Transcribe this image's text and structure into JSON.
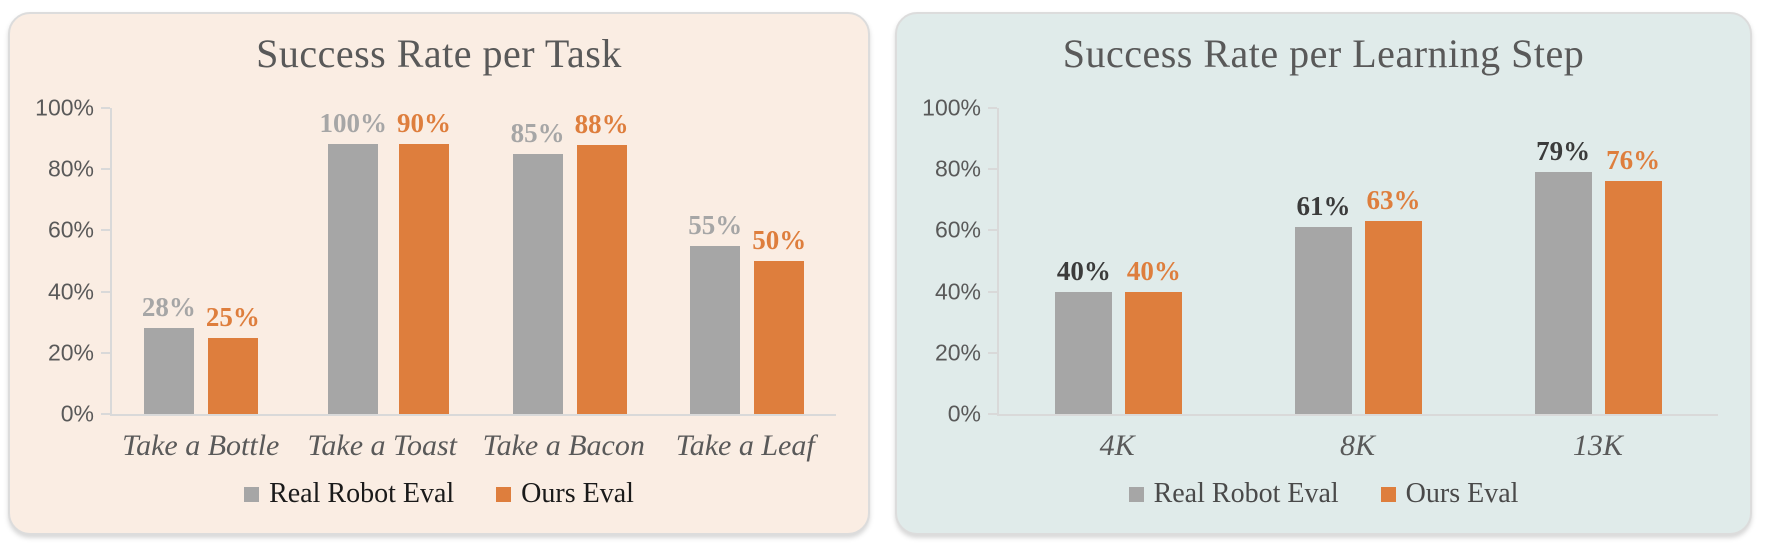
{
  "chart_data": [
    {
      "type": "bar",
      "title": "Success Rate per Task",
      "categories": [
        "Take a Bottle",
        "Take a Toast",
        "Take a Bacon",
        "Take a Leaf"
      ],
      "series": [
        {
          "name": "Real Robot Eval",
          "values": [
            28,
            100,
            85,
            55
          ],
          "value_labels": [
            "28%",
            "100%",
            "85%",
            "55%"
          ],
          "bar_color": "#A6A6A6",
          "value_label_color": "#A6A6A6"
        },
        {
          "name": "Ours Eval",
          "values": [
            25,
            90,
            88,
            50
          ],
          "value_labels": [
            "25%",
            "90%",
            "88%",
            "50%"
          ],
          "bar_color": "#DE7E3D",
          "value_label_color": "#DE7E3D"
        }
      ],
      "ylim": [
        0,
        100
      ],
      "y_ticks": [
        "0%",
        "20%",
        "40%",
        "60%",
        "80%",
        "100%"
      ],
      "grid": false,
      "legend_position": "bottom",
      "legend": [
        {
          "label": "Real Robot Eval",
          "color": "#A6A6A6"
        },
        {
          "label": "Ours Eval",
          "color": "#DE7E3D"
        }
      ],
      "style": {
        "card_background": "#FAEDE3",
        "legend_text_color": "#1A1A1A",
        "axis_color": "#D9D9D9",
        "title_color": "#595959"
      }
    },
    {
      "type": "bar",
      "title": "Success Rate per Learning Step",
      "categories": [
        "4K",
        "8K",
        "13K"
      ],
      "series": [
        {
          "name": "Real Robot Eval",
          "values": [
            40,
            61,
            79
          ],
          "value_labels": [
            "40%",
            "61%",
            "79%"
          ],
          "bar_color": "#A6A6A6",
          "value_label_color": "#3B3B3B"
        },
        {
          "name": "Ours Eval",
          "values": [
            40,
            63,
            76
          ],
          "value_labels": [
            "40%",
            "63%",
            "76%"
          ],
          "bar_color": "#DE7E3D",
          "value_label_color": "#DE7E3D"
        }
      ],
      "ylim": [
        0,
        100
      ],
      "y_ticks": [
        "0%",
        "20%",
        "40%",
        "60%",
        "80%",
        "100%"
      ],
      "grid": false,
      "legend_position": "bottom",
      "legend": [
        {
          "label": "Real Robot Eval",
          "color": "#A6A6A6"
        },
        {
          "label": "Ours Eval",
          "color": "#DE7E3D"
        }
      ],
      "style": {
        "card_background": "#E0EBEA",
        "legend_text_color": "#4A4A4A",
        "axis_color": "#D9D9D9",
        "title_color": "#595959"
      }
    }
  ]
}
